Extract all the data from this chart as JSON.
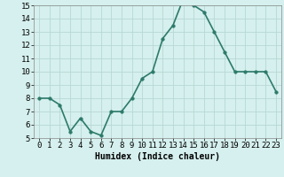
{
  "x": [
    0,
    1,
    2,
    3,
    4,
    5,
    6,
    7,
    8,
    9,
    10,
    11,
    12,
    13,
    14,
    15,
    16,
    17,
    18,
    19,
    20,
    21,
    22,
    23
  ],
  "y": [
    8.0,
    8.0,
    7.5,
    5.5,
    6.5,
    5.5,
    5.2,
    7.0,
    7.0,
    8.0,
    9.5,
    10.0,
    12.5,
    13.5,
    15.5,
    15.0,
    14.5,
    13.0,
    11.5,
    10.0,
    10.0,
    10.0,
    10.0,
    8.5
  ],
  "line_color": "#2d7a6b",
  "marker_color": "#2d7a6b",
  "bg_color": "#d5f0ee",
  "grid_color": "#b8d8d5",
  "xlabel": "Humidex (Indice chaleur)",
  "xlim_min": -0.5,
  "xlim_max": 23.5,
  "ylim_min": 5,
  "ylim_max": 15,
  "yticks": [
    5,
    6,
    7,
    8,
    9,
    10,
    11,
    12,
    13,
    14,
    15
  ],
  "xlabel_fontsize": 7,
  "tick_fontsize": 6.5,
  "line_width": 1.2,
  "marker_size": 2.5
}
